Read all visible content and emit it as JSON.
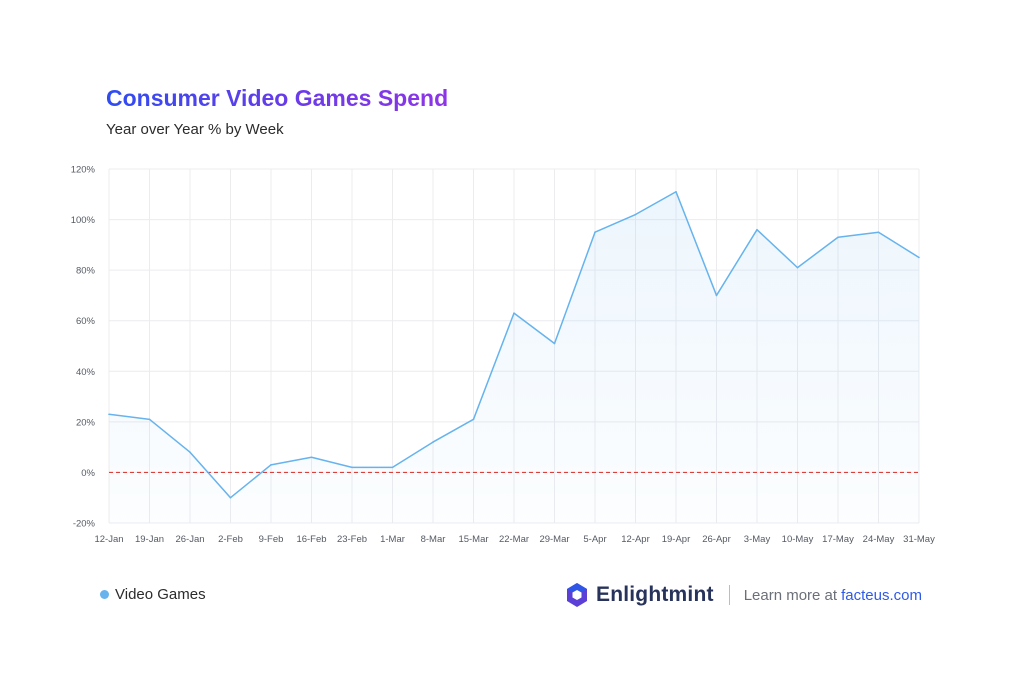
{
  "header": {
    "title": "Consumer Video Games Spend",
    "subtitle": "Year over Year % by Week"
  },
  "legend": {
    "label": "Video Games",
    "color": "#66b3ee"
  },
  "footer": {
    "brand": "Enlightmint",
    "cta": "Learn more at",
    "link": "facteus.com",
    "brand_color": "#27335a",
    "link_color": "#2f5ae8"
  },
  "chart_data": {
    "type": "line",
    "title": "Consumer Video Games Spend",
    "subtitle": "Year over Year % by Week",
    "categories": [
      "12-Jan",
      "19-Jan",
      "26-Jan",
      "2-Feb",
      "9-Feb",
      "16-Feb",
      "23-Feb",
      "1-Mar",
      "8-Mar",
      "15-Mar",
      "22-Mar",
      "29-Mar",
      "5-Apr",
      "12-Apr",
      "19-Apr",
      "26-Apr",
      "3-May",
      "10-May",
      "17-May",
      "24-May",
      "31-May"
    ],
    "series": [
      {
        "name": "Video Games",
        "color": "#66b3ee",
        "values": [
          23,
          21,
          8,
          -10,
          3,
          6,
          2,
          2,
          12,
          21,
          63,
          51,
          95,
          102,
          111,
          70,
          96,
          81,
          93,
          95,
          85
        ]
      }
    ],
    "ylim": [
      -20,
      120
    ],
    "yticks": [
      -20,
      0,
      20,
      40,
      60,
      80,
      100,
      120
    ],
    "ytick_labels": [
      "-20%",
      "0%",
      "20%",
      "40%",
      "60%",
      "80%",
      "100%",
      "120%"
    ],
    "reference_line": {
      "y": 0,
      "color": "#d9413a",
      "style": "dashed"
    },
    "grid": true,
    "legend_position": "bottom-left"
  }
}
